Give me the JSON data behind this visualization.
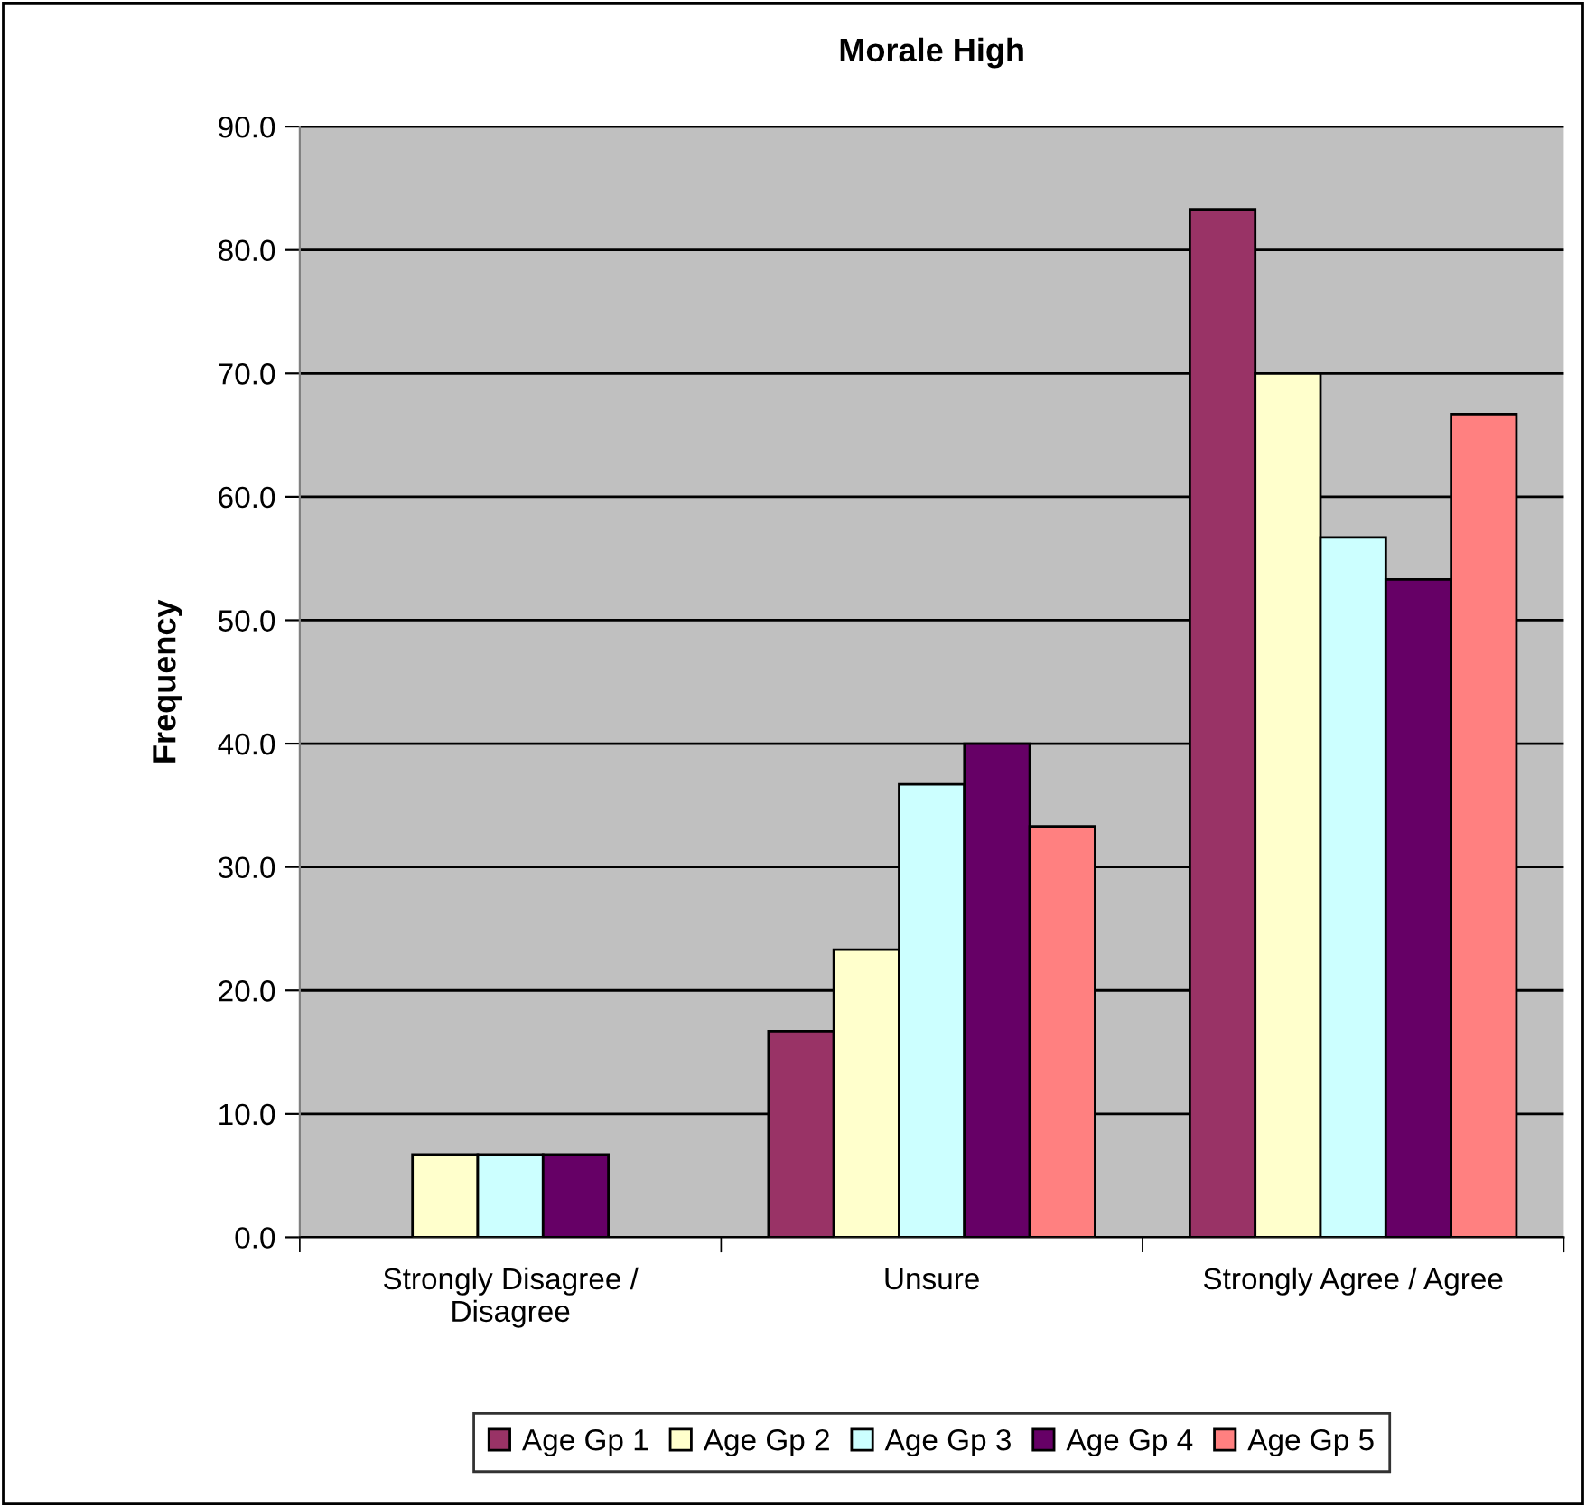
{
  "chart_data": {
    "type": "bar",
    "title": "Morale High",
    "ylabel": "Frequency",
    "categories": [
      "Strongly Disagree /\nDisagree",
      "Unsure",
      "Strongly Agree / Agree"
    ],
    "series": [
      {
        "name": "Age Gp 1",
        "color": "#993366",
        "values": [
          null,
          16.7,
          83.3
        ]
      },
      {
        "name": "Age Gp 2",
        "color": "#ffffcc",
        "values": [
          6.7,
          23.3,
          70.0
        ]
      },
      {
        "name": "Age Gp 3",
        "color": "#ccffff",
        "values": [
          6.7,
          36.7,
          56.7
        ]
      },
      {
        "name": "Age Gp 4",
        "color": "#660066",
        "values": [
          6.7,
          40.0,
          53.3
        ]
      },
      {
        "name": "Age Gp 5",
        "color": "#ff8080",
        "values": [
          null,
          33.3,
          66.7
        ]
      }
    ],
    "ylim": [
      0,
      90
    ],
    "yticks": [
      {
        "value": 0,
        "label": "0.0"
      },
      {
        "value": 10,
        "label": "10.0"
      },
      {
        "value": 20,
        "label": "20.0"
      },
      {
        "value": 30,
        "label": "30.0"
      },
      {
        "value": 40,
        "label": "40.0"
      },
      {
        "value": 50,
        "label": "50.0"
      },
      {
        "value": 60,
        "label": "60.0"
      },
      {
        "value": 70,
        "label": "70.0"
      },
      {
        "value": 80,
        "label": "80.0"
      },
      {
        "value": 90,
        "label": "90.0"
      }
    ],
    "grid": "y",
    "legend": "bottom"
  }
}
